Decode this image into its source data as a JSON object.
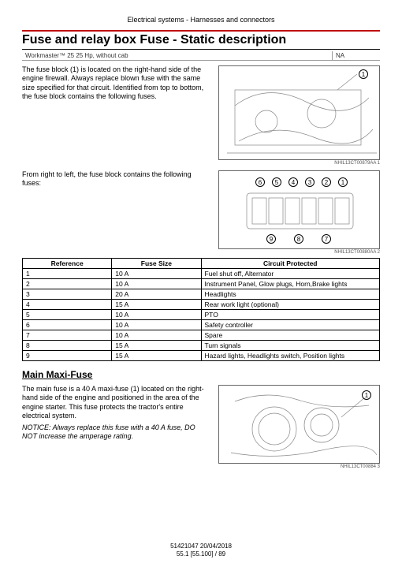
{
  "header": "Electrical systems - Harnesses and connectors",
  "title": "Fuse and relay box Fuse - Static description",
  "model_left": "Workmaster™ 25 25 Hp, without cab",
  "model_right": "NA",
  "para1": "The fuse block (1) is located on the right-hand side of the engine firewall. Always replace blown fuse with the same size specified for that circuit. Identified from top to bottom, the fuse block contains the following fuses.",
  "para2": "From right to left, the fuse block contains the following fuses:",
  "fig1_cap": "NHIL13CT00879AA   1",
  "fig2_cap": "NHIL13CT00880AA   2",
  "fig3_cap": "NHIL13CT00884   3",
  "table": {
    "cols": [
      "Reference",
      "Fuse Size",
      "Circuit Protected"
    ],
    "rows": [
      [
        "1",
        "10 A",
        "Fuel shut off, Alternator"
      ],
      [
        "2",
        "10 A",
        "Instrument Panel, Glow plugs, Horn,Brake lights"
      ],
      [
        "3",
        "20 A",
        "Headlights"
      ],
      [
        "4",
        "15 A",
        "Rear work light (optional)"
      ],
      [
        "5",
        "10 A",
        "PTO"
      ],
      [
        "6",
        "10 A",
        "Safety controller"
      ],
      [
        "7",
        "10 A",
        "Spare"
      ],
      [
        "8",
        "15 A",
        "Turn signals"
      ],
      [
        "9",
        "15 A",
        "Hazard lights, Headlights switch, Position lights"
      ]
    ]
  },
  "maxi_heading": "Main Maxi-Fuse",
  "maxi_para": "The main fuse is a 40 A maxi-fuse (1) located on the right-hand side of the engine and positioned in the area of the engine starter. This fuse protects the tractor's entire electrical system.",
  "maxi_notice": "NOTICE: Always replace this fuse with a 40 A fuse, DO NOT increase the amperage rating.",
  "footer_id": "51421047 20/04/2018",
  "footer_pg": "55.1 [55.100] / 89",
  "fig2_callouts": [
    "6",
    "5",
    "4",
    "3",
    "2",
    "1",
    "9",
    "8",
    "7"
  ],
  "callout_1": "1"
}
